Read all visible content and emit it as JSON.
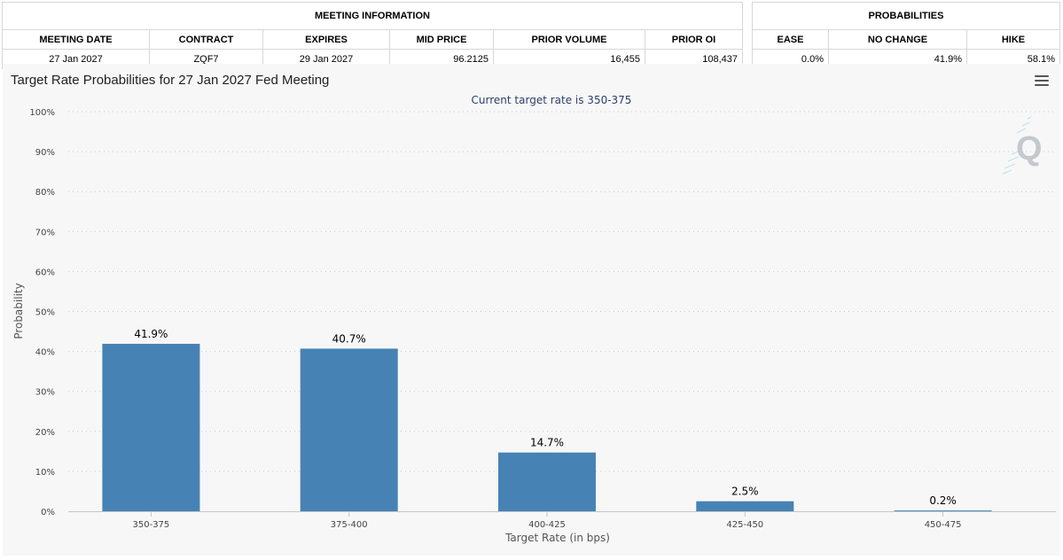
{
  "meeting_info": {
    "caption": "MEETING INFORMATION",
    "headers": [
      "MEETING DATE",
      "CONTRACT",
      "EXPIRES",
      "MID PRICE",
      "PRIOR VOLUME",
      "PRIOR OI"
    ],
    "values": [
      "27 Jan 2027",
      "ZQF7",
      "29 Jan 2027",
      "96.2125",
      "16,455",
      "108,437"
    ]
  },
  "probabilities": {
    "caption": "PROBABILITIES",
    "headers": [
      "EASE",
      "NO CHANGE",
      "HIKE"
    ],
    "values": [
      "0.0%",
      "41.9%",
      "58.1%"
    ]
  },
  "chart_data": {
    "type": "bar",
    "title": "Target Rate Probabilities for 27 Jan 2027 Fed Meeting",
    "subtitle": "Current target rate is 350-375",
    "xlabel": "Target Rate (in bps)",
    "ylabel": "Probability",
    "categories": [
      "350-375",
      "375-400",
      "400-425",
      "425-450",
      "450-475"
    ],
    "values": [
      41.9,
      40.7,
      14.7,
      2.5,
      0.2
    ],
    "data_labels": [
      "41.9%",
      "40.7%",
      "14.7%",
      "2.5%",
      "0.2%"
    ],
    "ylim": [
      0,
      100
    ],
    "yticks": [
      "0%",
      "10%",
      "20%",
      "30%",
      "40%",
      "50%",
      "60%",
      "70%",
      "80%",
      "90%",
      "100%"
    ],
    "grid": true,
    "bar_color": "#4682b4"
  },
  "watermark_letter": "Q"
}
